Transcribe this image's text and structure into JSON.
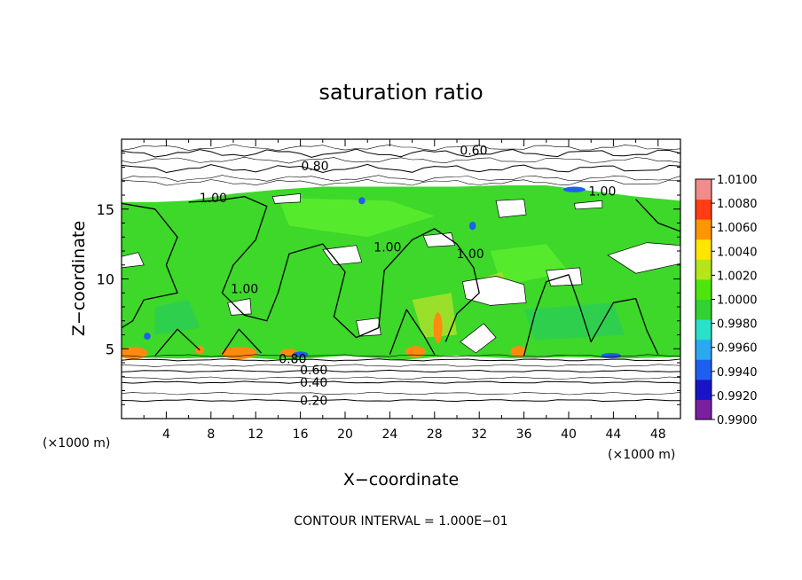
{
  "chart_data": {
    "type": "heatmap",
    "title": "saturation ratio",
    "xlabel": "X−coordinate",
    "ylabel": "Z−coordinate",
    "x_unit_label": "(×1000 m)",
    "y_unit_label": "(×1000 m)",
    "xlim": [
      0,
      50
    ],
    "ylim": [
      0,
      20
    ],
    "x_ticks": [
      4,
      8,
      12,
      16,
      20,
      24,
      28,
      32,
      36,
      40,
      44,
      48
    ],
    "y_ticks": [
      5,
      10,
      15
    ],
    "footer": "CONTOUR INTERVAL = 1.000E−01",
    "colorbar": {
      "min": 0.99,
      "max": 1.01,
      "labels": [
        "1.0100",
        "1.0080",
        "1.0060",
        "1.0040",
        "1.0020",
        "1.0000",
        "0.9980",
        "0.9960",
        "0.9940",
        "0.9920",
        "0.9900"
      ],
      "colors": [
        "#7a1fa0",
        "#1a14c8",
        "#1f5ff0",
        "#2aa8f0",
        "#29e0c8",
        "#32d232",
        "#4de60a",
        "#b4e61a",
        "#ffe600",
        "#ff9600",
        "#ff3c14",
        "#f08c8c"
      ]
    },
    "contour_lines": [
      {
        "level": 0.2,
        "label": "0.20",
        "z": 1.3
      },
      {
        "level": 0.4,
        "label": "0.40",
        "z": 2.6
      },
      {
        "level": 0.6,
        "label": "0.60",
        "z": 3.4
      },
      {
        "level": 0.8,
        "label": "0.80",
        "z": 4.2
      },
      {
        "level": 0.8,
        "label": "0.80",
        "z": 17.9
      },
      {
        "level": 0.6,
        "label": "0.60",
        "z": 19.0
      }
    ],
    "contour_labels_upper": [
      {
        "label": "0.60",
        "x": 31.5,
        "z": 19.2
      },
      {
        "label": "0.80",
        "x": 17.3,
        "z": 18.1
      },
      {
        "label": "1.00",
        "x": 8.2,
        "z": 15.8
      },
      {
        "label": "1.00",
        "x": 43.0,
        "z": 16.3
      },
      {
        "label": "1.00",
        "x": 23.8,
        "z": 12.3
      },
      {
        "label": "1.00",
        "x": 31.2,
        "z": 11.8
      },
      {
        "label": "1.00",
        "x": 11.0,
        "z": 9.3
      }
    ],
    "contour_labels_lower": [
      {
        "label": "0.80",
        "x": 15.3,
        "z": 4.3
      },
      {
        "label": "0.60",
        "x": 17.2,
        "z": 3.5
      },
      {
        "label": "0.40",
        "x": 17.2,
        "z": 2.6
      },
      {
        "label": "0.20",
        "x": 17.2,
        "z": 1.3
      }
    ]
  }
}
